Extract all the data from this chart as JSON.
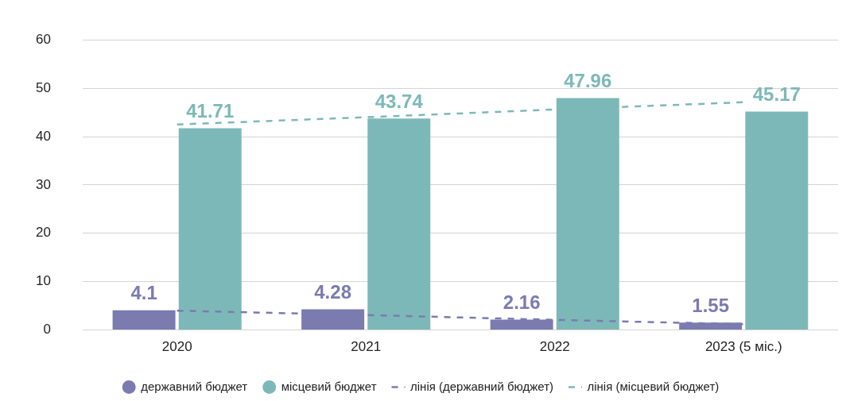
{
  "chart_data": {
    "type": "bar",
    "categories": [
      "2020",
      "2021",
      "2022",
      "2023 (5 міс.)"
    ],
    "series": [
      {
        "name": "державний бюджет",
        "color": "#7b7bb0",
        "values": [
          4.1,
          4.28,
          2.16,
          1.55
        ],
        "value_labels": [
          "4.1",
          "4.28",
          "2.16",
          "1.55"
        ]
      },
      {
        "name": "місцевий бюджет",
        "color": "#7db8b8",
        "values": [
          41.71,
          43.74,
          47.96,
          45.17
        ],
        "value_labels": [
          "41.71",
          "43.74",
          "47.96",
          "45.17"
        ]
      },
      {
        "name": "лінія (державний бюджет)",
        "type": "line",
        "line_style": "dashed",
        "color": "#7b7bb0",
        "values": [
          4.0,
          3.1,
          2.1,
          1.2
        ]
      },
      {
        "name": "лінія (місцевий бюджет)",
        "type": "line",
        "line_style": "dashed",
        "color": "#7db8b8",
        "values": [
          42.5,
          44.0,
          45.6,
          47.1
        ]
      }
    ],
    "ylim": [
      0,
      60
    ],
    "yticks": [
      0,
      10,
      20,
      30,
      40,
      50,
      60
    ],
    "grid": "y",
    "legend": "bottom",
    "marker": "none"
  }
}
